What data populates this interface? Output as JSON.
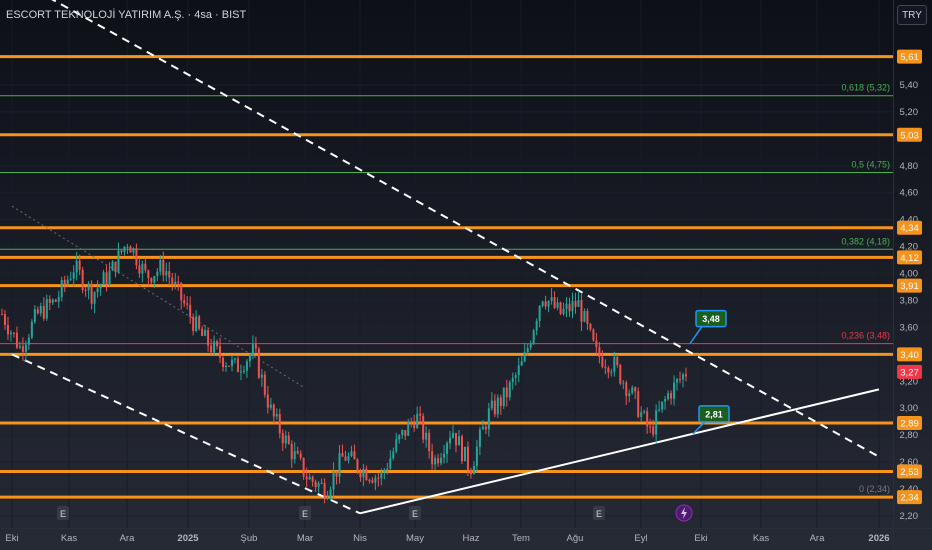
{
  "header": {
    "title": "ESCORT TEKNOLOJİ YATIRIM A.Ş. · 4sa · BIST"
  },
  "price_axis": {
    "currency_label": "TRY"
  },
  "colors": {
    "background": "#131722",
    "level_line": "#f7931a",
    "fib_line": "#4caf50",
    "fib_red": "#f23645",
    "candle_up": "#26a69a",
    "candle_down": "#ef5350",
    "current_price": "#f23645",
    "callout_fill": "#1b5e20",
    "callout_border": "#2196f3",
    "event_icon_bg": "#363a45",
    "dividend_icon_bg": "#4a1e6e"
  },
  "chart_data": {
    "type": "candlestick",
    "symbol": "ESCORT TEKNOLOJİ YATIRIM A.Ş.",
    "interval": "4sa",
    "exchange": "BIST",
    "currency": "TRY",
    "ylim": [
      2.18,
      5.7
    ],
    "y_ticks": [
      "5,40",
      "5,20",
      "4,80",
      "4,60",
      "4,40",
      "4,20",
      "4,00",
      "3,80",
      "3,60",
      "3,20",
      "3,00",
      "2,80",
      "2,60",
      "2,40",
      "2,20"
    ],
    "x_ticks": [
      "Eki",
      "Kas",
      "Ara",
      "2025",
      "Şub",
      "Mar",
      "Nis",
      "May",
      "Haz",
      "Tem",
      "Ağu",
      "Eyl",
      "Eki",
      "Kas",
      "Ara",
      "2026"
    ],
    "horizontal_levels": [
      5.61,
      5.03,
      4.34,
      4.12,
      3.91,
      3.4,
      2.89,
      2.53,
      2.34
    ],
    "level_labels": [
      "5,61",
      "5,03",
      "4,34",
      "4,12",
      "3,91",
      "3,40",
      "2,89",
      "2,53",
      "2,34"
    ],
    "fibonacci": [
      {
        "ratio": "0.618",
        "label": "0,618 (5,32)",
        "price": 5.32
      },
      {
        "ratio": "0.5",
        "label": "0,5 (4,75)",
        "price": 4.75
      },
      {
        "ratio": "0.382",
        "label": "0,382 (4,18)",
        "price": 4.18
      },
      {
        "ratio": "0.236",
        "label": "0,236 (3,48)",
        "price": 3.48
      },
      {
        "ratio": "0",
        "label": "0 (2,34)",
        "price": 2.34
      }
    ],
    "current_price": {
      "value": 3.27,
      "label": "3,27"
    },
    "callouts": [
      {
        "label": "3,48",
        "price": 3.48,
        "time": "Eyl"
      },
      {
        "label": "2,81",
        "price": 2.81,
        "time": "Eyl"
      }
    ],
    "trendlines": [
      {
        "name": "upper descending channel",
        "style": "dashed",
        "from": {
          "time": "Eki",
          "price": 6.2
        },
        "to": {
          "time": "2026",
          "price": 2.64
        }
      },
      {
        "name": "lower descending channel",
        "style": "dashed",
        "from": {
          "time": "Eki",
          "price": 3.4
        },
        "to": {
          "time": "Nis",
          "price": 2.22
        }
      },
      {
        "name": "rising support",
        "style": "solid",
        "from": {
          "time": "Nis",
          "price": 2.22
        },
        "to": {
          "time": "2026",
          "price": 3.14
        }
      },
      {
        "name": "dotted guide",
        "style": "dotted",
        "from": {
          "time": "Eki",
          "price": 4.5
        },
        "to": {
          "time": "Mar",
          "price": 3.15
        }
      }
    ],
    "price_path": [
      [
        "Eki",
        3.7
      ],
      [
        "Eki",
        3.45
      ],
      [
        "Kas",
        3.7
      ],
      [
        "Kas",
        3.8
      ],
      [
        "Kas",
        4.05
      ],
      [
        "Ara",
        3.85
      ],
      [
        "Ara",
        4.0
      ],
      [
        "Ara",
        4.25
      ],
      [
        "2025",
        3.98
      ],
      [
        "2025",
        4.05
      ],
      [
        "Şub",
        3.8
      ],
      [
        "Şub",
        3.55
      ],
      [
        "Şub",
        3.4
      ],
      [
        "Mar",
        3.3
      ],
      [
        "Mar",
        3.42
      ],
      [
        "Mar",
        2.95
      ],
      [
        "Mar",
        2.7
      ],
      [
        "Nis",
        2.48
      ],
      [
        "Nis",
        2.4
      ],
      [
        "May",
        2.65
      ],
      [
        "May",
        2.55
      ],
      [
        "May",
        2.48
      ],
      [
        "May",
        2.75
      ],
      [
        "Haz",
        2.95
      ],
      [
        "Haz",
        2.6
      ],
      [
        "Haz",
        2.85
      ],
      [
        "Haz",
        2.55
      ],
      [
        "Tem",
        2.95
      ],
      [
        "Tem",
        3.1
      ],
      [
        "Tem",
        3.35
      ],
      [
        "Ağu",
        3.85
      ],
      [
        "Ağu",
        3.7
      ],
      [
        "Ağu",
        3.78
      ],
      [
        "Eyl",
        3.4
      ],
      [
        "Eyl",
        3.32
      ],
      [
        "Eyl",
        3.1
      ],
      [
        "Eyl",
        2.82
      ],
      [
        "Eyl",
        3.1
      ],
      [
        "Eki",
        3.27
      ]
    ],
    "events": [
      {
        "time": "Kas",
        "type": "earnings",
        "label": "E"
      },
      {
        "time": "Mar",
        "type": "earnings",
        "label": "E"
      },
      {
        "time": "Nis",
        "type": "earnings",
        "label": "E"
      },
      {
        "time": "Ağu",
        "type": "earnings",
        "label": "E"
      },
      {
        "time": "Eyl",
        "type": "dividend",
        "label": ""
      }
    ]
  }
}
